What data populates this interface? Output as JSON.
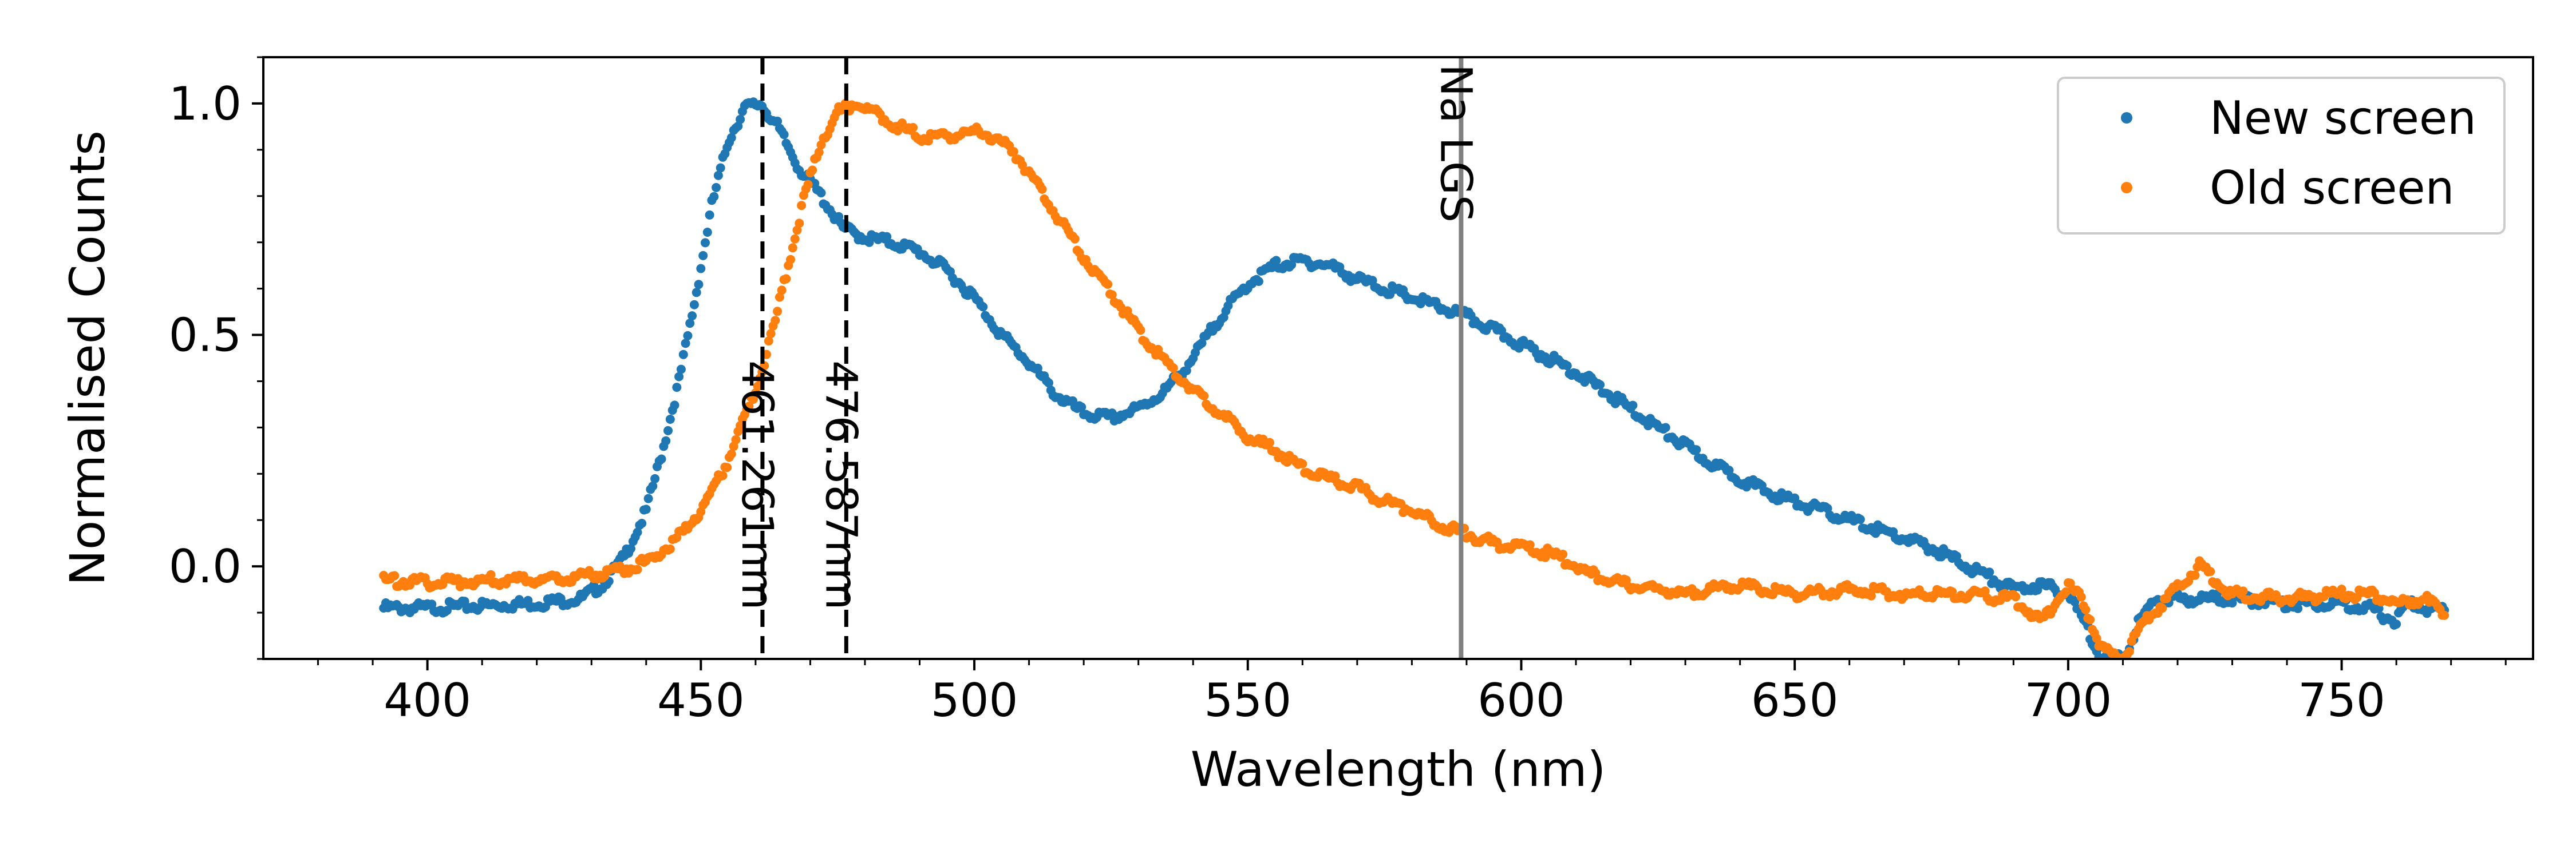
{
  "chart_data": {
    "type": "scatter",
    "xlabel": "Wavelength (nm)",
    "ylabel": "Normalised Counts",
    "xlim": [
      370,
      785
    ],
    "ylim": [
      -0.2,
      1.1
    ],
    "x_ticks": [
      400,
      450,
      500,
      550,
      600,
      650,
      700,
      750
    ],
    "x_tick_labels": [
      "400",
      "450",
      "500",
      "550",
      "600",
      "650",
      "700",
      "750"
    ],
    "y_ticks": [
      0.0,
      0.5,
      1.0
    ],
    "y_tick_labels": [
      "0.0",
      "0.5",
      "1.0"
    ],
    "grid": false,
    "legend_position": "top-right",
    "series": [
      {
        "name": "New screen",
        "color": "#1f77b4",
        "points": [
          [
            392,
            -0.09
          ],
          [
            400,
            -0.09
          ],
          [
            410,
            -0.085
          ],
          [
            420,
            -0.08
          ],
          [
            428,
            -0.07
          ],
          [
            432,
            -0.04
          ],
          [
            436,
            0.02
          ],
          [
            440,
            0.12
          ],
          [
            443,
            0.25
          ],
          [
            446,
            0.4
          ],
          [
            449,
            0.58
          ],
          [
            452,
            0.78
          ],
          [
            455,
            0.92
          ],
          [
            458,
            0.99
          ],
          [
            461,
            1.0
          ],
          [
            464,
            0.95
          ],
          [
            468,
            0.86
          ],
          [
            472,
            0.8
          ],
          [
            476,
            0.73
          ],
          [
            480,
            0.71
          ],
          [
            485,
            0.7
          ],
          [
            490,
            0.68
          ],
          [
            495,
            0.64
          ],
          [
            500,
            0.58
          ],
          [
            505,
            0.5
          ],
          [
            510,
            0.44
          ],
          [
            515,
            0.37
          ],
          [
            520,
            0.33
          ],
          [
            525,
            0.32
          ],
          [
            530,
            0.34
          ],
          [
            535,
            0.38
          ],
          [
            540,
            0.45
          ],
          [
            545,
            0.54
          ],
          [
            550,
            0.61
          ],
          [
            555,
            0.65
          ],
          [
            560,
            0.66
          ],
          [
            565,
            0.65
          ],
          [
            570,
            0.62
          ],
          [
            575,
            0.6
          ],
          [
            580,
            0.58
          ],
          [
            585,
            0.56
          ],
          [
            590,
            0.54
          ],
          [
            595,
            0.51
          ],
          [
            600,
            0.48
          ],
          [
            605,
            0.45
          ],
          [
            610,
            0.42
          ],
          [
            615,
            0.38
          ],
          [
            620,
            0.34
          ],
          [
            625,
            0.3
          ],
          [
            630,
            0.26
          ],
          [
            635,
            0.22
          ],
          [
            640,
            0.19
          ],
          [
            645,
            0.16
          ],
          [
            650,
            0.14
          ],
          [
            655,
            0.12
          ],
          [
            660,
            0.1
          ],
          [
            665,
            0.08
          ],
          [
            670,
            0.06
          ],
          [
            675,
            0.04
          ],
          [
            680,
            0.01
          ],
          [
            685,
            -0.02
          ],
          [
            690,
            -0.05
          ],
          [
            695,
            -0.04
          ],
          [
            700,
            -0.06
          ],
          [
            703,
            -0.12
          ],
          [
            706,
            -0.2
          ],
          [
            710,
            -0.2
          ],
          [
            713,
            -0.12
          ],
          [
            716,
            -0.07
          ],
          [
            720,
            -0.07
          ],
          [
            730,
            -0.07
          ],
          [
            740,
            -0.08
          ],
          [
            750,
            -0.08
          ],
          [
            755,
            -0.09
          ],
          [
            760,
            -0.12
          ],
          [
            762,
            -0.08
          ],
          [
            765,
            -0.09
          ],
          [
            769,
            -0.1
          ]
        ]
      },
      {
        "name": "Old screen",
        "color": "#ff7f0e",
        "points": [
          [
            392,
            -0.03
          ],
          [
            400,
            -0.035
          ],
          [
            410,
            -0.03
          ],
          [
            420,
            -0.03
          ],
          [
            430,
            -0.02
          ],
          [
            435,
            -0.01
          ],
          [
            440,
            0.01
          ],
          [
            445,
            0.05
          ],
          [
            450,
            0.12
          ],
          [
            455,
            0.23
          ],
          [
            460,
            0.38
          ],
          [
            463,
            0.5
          ],
          [
            466,
            0.65
          ],
          [
            469,
            0.8
          ],
          [
            472,
            0.92
          ],
          [
            475,
            0.98
          ],
          [
            478,
            1.0
          ],
          [
            482,
            0.98
          ],
          [
            486,
            0.95
          ],
          [
            490,
            0.93
          ],
          [
            495,
            0.93
          ],
          [
            500,
            0.94
          ],
          [
            503,
            0.93
          ],
          [
            507,
            0.9
          ],
          [
            510,
            0.85
          ],
          [
            515,
            0.76
          ],
          [
            520,
            0.67
          ],
          [
            525,
            0.59
          ],
          [
            530,
            0.51
          ],
          [
            535,
            0.44
          ],
          [
            540,
            0.38
          ],
          [
            545,
            0.33
          ],
          [
            550,
            0.28
          ],
          [
            555,
            0.25
          ],
          [
            560,
            0.21
          ],
          [
            565,
            0.19
          ],
          [
            570,
            0.17
          ],
          [
            575,
            0.14
          ],
          [
            580,
            0.12
          ],
          [
            585,
            0.09
          ],
          [
            590,
            0.07
          ],
          [
            595,
            0.05
          ],
          [
            600,
            0.04
          ],
          [
            605,
            0.03
          ],
          [
            610,
            0.0
          ],
          [
            615,
            -0.03
          ],
          [
            620,
            -0.04
          ],
          [
            625,
            -0.05
          ],
          [
            630,
            -0.06
          ],
          [
            640,
            -0.04
          ],
          [
            650,
            -0.06
          ],
          [
            660,
            -0.05
          ],
          [
            670,
            -0.06
          ],
          [
            680,
            -0.06
          ],
          [
            690,
            -0.07
          ],
          [
            695,
            -0.12
          ],
          [
            700,
            -0.04
          ],
          [
            703,
            -0.08
          ],
          [
            706,
            -0.18
          ],
          [
            710,
            -0.2
          ],
          [
            714,
            -0.12
          ],
          [
            718,
            -0.07
          ],
          [
            724,
            0.0
          ],
          [
            730,
            -0.06
          ],
          [
            740,
            -0.07
          ],
          [
            750,
            -0.06
          ],
          [
            755,
            -0.06
          ],
          [
            760,
            -0.08
          ],
          [
            765,
            -0.07
          ],
          [
            769,
            -0.1
          ]
        ]
      }
    ],
    "vlines": [
      {
        "x": 461.261,
        "label": "461.261nm",
        "style": "dashed",
        "color": "#000000"
      },
      {
        "x": 476.587,
        "label": "476.587nm",
        "style": "dashed",
        "color": "#000000"
      },
      {
        "x": 589.0,
        "label": "Na LGS",
        "style": "solid",
        "color": "#808080"
      }
    ]
  }
}
